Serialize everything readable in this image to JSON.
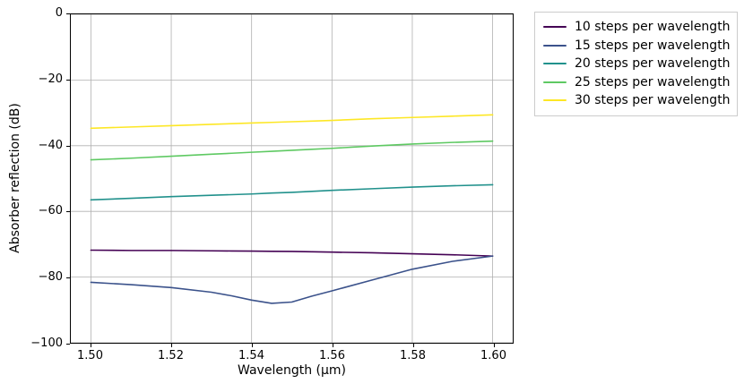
{
  "figure": {
    "background_color": "#ffffff",
    "grid_color": "#b0b0b0",
    "spine_color": "#000000",
    "legend_border_color": "#cccccc"
  },
  "chart_data": {
    "type": "line",
    "title": "",
    "xlabel": "Wavelength (μm)",
    "ylabel": "Absorber reflection (dB)",
    "xlim": [
      1.495,
      1.605
    ],
    "ylim": [
      -100,
      0
    ],
    "grid": true,
    "legend_position": "outside upper right",
    "x_tick_values": [
      1.5,
      1.52,
      1.54,
      1.56,
      1.58,
      1.6
    ],
    "x_tick_labels": [
      "1.50",
      "1.52",
      "1.54",
      "1.56",
      "1.58",
      "1.60"
    ],
    "y_tick_values": [
      0,
      -20,
      -40,
      -60,
      -80,
      -100
    ],
    "y_tick_labels": [
      "0",
      "−20",
      "−40",
      "−60",
      "−80",
      "−100"
    ],
    "x": [
      1.5,
      1.51,
      1.52,
      1.53,
      1.535,
      1.54,
      1.545,
      1.55,
      1.555,
      1.56,
      1.57,
      1.58,
      1.59,
      1.6
    ],
    "series": [
      {
        "name": "10 steps per wavelength",
        "color": "#440154",
        "values": [
          -71.8,
          -71.9,
          -71.9,
          -72.0,
          -72.05,
          -72.1,
          -72.15,
          -72.2,
          -72.3,
          -72.4,
          -72.6,
          -72.9,
          -73.2,
          -73.6
        ]
      },
      {
        "name": "15 steps per wavelength",
        "color": "#3b528b",
        "values": [
          -81.6,
          -82.3,
          -83.2,
          -84.6,
          -85.7,
          -87.0,
          -88.0,
          -87.6,
          -85.8,
          -84.2,
          -80.9,
          -77.6,
          -75.2,
          -73.6
        ]
      },
      {
        "name": "20 steps per wavelength",
        "color": "#21918c",
        "values": [
          -56.5,
          -56.0,
          -55.5,
          -55.1,
          -54.9,
          -54.7,
          -54.4,
          -54.2,
          -53.9,
          -53.6,
          -53.1,
          -52.6,
          -52.2,
          -51.9
        ]
      },
      {
        "name": "25 steps per wavelength",
        "color": "#5ec962",
        "values": [
          -44.3,
          -43.8,
          -43.2,
          -42.6,
          -42.3,
          -42.0,
          -41.7,
          -41.4,
          -41.1,
          -40.8,
          -40.1,
          -39.5,
          -39.0,
          -38.6
        ]
      },
      {
        "name": "30 steps per wavelength",
        "color": "#fde725",
        "values": [
          -34.7,
          -34.3,
          -33.9,
          -33.5,
          -33.3,
          -33.1,
          -32.9,
          -32.7,
          -32.5,
          -32.3,
          -31.8,
          -31.4,
          -31.0,
          -30.6
        ]
      }
    ]
  }
}
